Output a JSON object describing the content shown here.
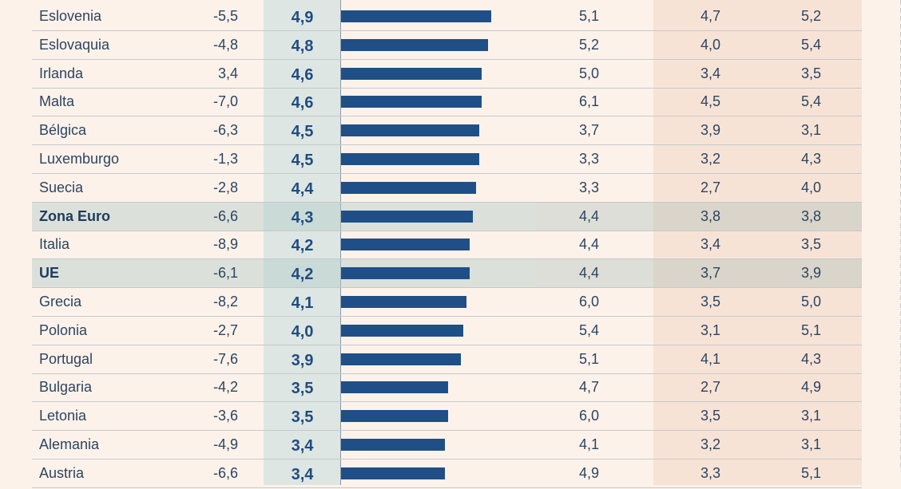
{
  "chart_data": {
    "type": "table",
    "rows": [
      {
        "country": "Eslovenia",
        "v2020": "-5,5",
        "v2021": "4,9",
        "bar": 4.9,
        "v2022": "5,1",
        "v2023": "4,7",
        "v2024": "5,2",
        "highlight": false
      },
      {
        "country": "Eslovaquia",
        "v2020": "-4,8",
        "v2021": "4,8",
        "bar": 4.8,
        "v2022": "5,2",
        "v2023": "4,0",
        "v2024": "5,4",
        "highlight": false
      },
      {
        "country": "Irlanda",
        "v2020": "3,4",
        "v2021": "4,6",
        "bar": 4.6,
        "v2022": "5,0",
        "v2023": "3,4",
        "v2024": "3,5",
        "highlight": false
      },
      {
        "country": "Malta",
        "v2020": "-7,0",
        "v2021": "4,6",
        "bar": 4.6,
        "v2022": "6,1",
        "v2023": "4,5",
        "v2024": "5,4",
        "highlight": false
      },
      {
        "country": "Bélgica",
        "v2020": "-6,3",
        "v2021": "4,5",
        "bar": 4.5,
        "v2022": "3,7",
        "v2023": "3,9",
        "v2024": "3,1",
        "highlight": false
      },
      {
        "country": "Luxemburgo",
        "v2020": "-1,3",
        "v2021": "4,5",
        "bar": 4.5,
        "v2022": "3,3",
        "v2023": "3,2",
        "v2024": "4,3",
        "highlight": false
      },
      {
        "country": "Suecia",
        "v2020": "-2,8",
        "v2021": "4,4",
        "bar": 4.4,
        "v2022": "3,3",
        "v2023": "2,7",
        "v2024": "4,0",
        "highlight": false
      },
      {
        "country": "Zona Euro",
        "v2020": "-6,6",
        "v2021": "4,3",
        "bar": 4.3,
        "v2022": "4,4",
        "v2023": "3,8",
        "v2024": "3,8",
        "highlight": true
      },
      {
        "country": "Italia",
        "v2020": "-8,9",
        "v2021": "4,2",
        "bar": 4.2,
        "v2022": "4,4",
        "v2023": "3,4",
        "v2024": "3,5",
        "highlight": false
      },
      {
        "country": "UE",
        "v2020": "-6,1",
        "v2021": "4,2",
        "bar": 4.2,
        "v2022": "4,4",
        "v2023": "3,7",
        "v2024": "3,9",
        "highlight": true
      },
      {
        "country": "Grecia",
        "v2020": "-8,2",
        "v2021": "4,1",
        "bar": 4.1,
        "v2022": "6,0",
        "v2023": "3,5",
        "v2024": "5,0",
        "highlight": false
      },
      {
        "country": "Polonia",
        "v2020": "-2,7",
        "v2021": "4,0",
        "bar": 4.0,
        "v2022": "5,4",
        "v2023": "3,1",
        "v2024": "5,1",
        "highlight": false
      },
      {
        "country": "Portugal",
        "v2020": "-7,6",
        "v2021": "3,9",
        "bar": 3.9,
        "v2022": "5,1",
        "v2023": "4,1",
        "v2024": "4,3",
        "highlight": false
      },
      {
        "country": "Bulgaria",
        "v2020": "-4,2",
        "v2021": "3,5",
        "bar": 3.5,
        "v2022": "4,7",
        "v2023": "2,7",
        "v2024": "4,9",
        "highlight": false
      },
      {
        "country": "Letonia",
        "v2020": "-3,6",
        "v2021": "3,5",
        "bar": 3.5,
        "v2022": "6,0",
        "v2023": "3,5",
        "v2024": "3,1",
        "highlight": false
      },
      {
        "country": "Alemania",
        "v2020": "-4,9",
        "v2021": "3,4",
        "bar": 3.4,
        "v2022": "4,1",
        "v2023": "3,2",
        "v2024": "3,1",
        "highlight": false
      },
      {
        "country": "Austria",
        "v2020": "-6,6",
        "v2021": "3,4",
        "bar": 3.4,
        "v2022": "4,9",
        "v2023": "3,3",
        "v2024": "5,1",
        "highlight": false
      }
    ],
    "bar_max": 4.9,
    "colors": {
      "bar": "#1f4f86",
      "text": "#2d4562",
      "background": "#fcf2ea"
    }
  }
}
